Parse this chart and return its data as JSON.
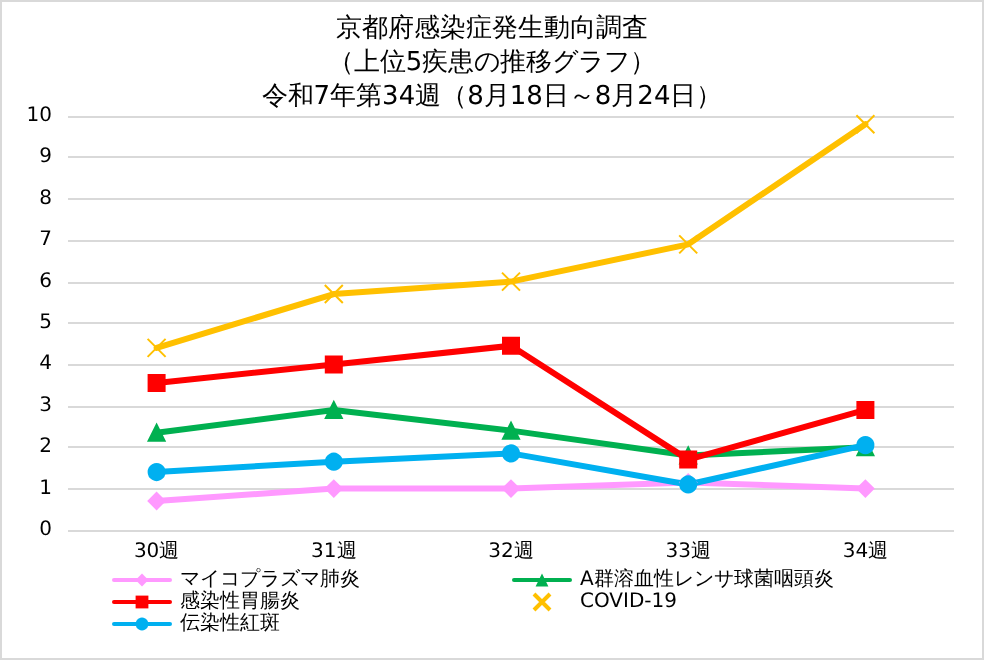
{
  "chart_data": {
    "type": "line",
    "title": "京都府感染症発生動向調査",
    "subtitle": "（上位5疾患の推移グラフ）",
    "annotations": [
      "令和7年第34週（8月18日～8月24日）"
    ],
    "categories": [
      "30週",
      "31週",
      "32週",
      "33週",
      "34週"
    ],
    "series": [
      {
        "name": "マイコプラズマ肺炎",
        "color": "#ff99ff",
        "marker": "diamond",
        "values": [
          0.7,
          1.0,
          1.0,
          1.15,
          1.0
        ]
      },
      {
        "name": "A群溶血性レンサ球菌咽頭炎",
        "color": "#00b050",
        "marker": "triangle",
        "values": [
          2.35,
          2.9,
          2.4,
          1.8,
          2.0
        ]
      },
      {
        "name": "感染性胃腸炎",
        "color": "#ff0000",
        "marker": "square",
        "values": [
          3.55,
          4.0,
          4.45,
          1.7,
          2.9
        ]
      },
      {
        "name": "COVID-19",
        "color": "#ffc000",
        "marker": "cross",
        "values": [
          4.4,
          5.7,
          6.0,
          6.9,
          9.8
        ]
      },
      {
        "name": "伝染性紅斑",
        "color": "#00b0f0",
        "marker": "circle",
        "values": [
          1.4,
          1.65,
          1.85,
          1.1,
          2.05
        ]
      }
    ],
    "ylim": [
      0,
      10
    ],
    "yticks": [
      0,
      1,
      2,
      3,
      4,
      5,
      6,
      7,
      8,
      9,
      10
    ],
    "grid": "y",
    "legend": "bottom",
    "line_style": "solid"
  }
}
